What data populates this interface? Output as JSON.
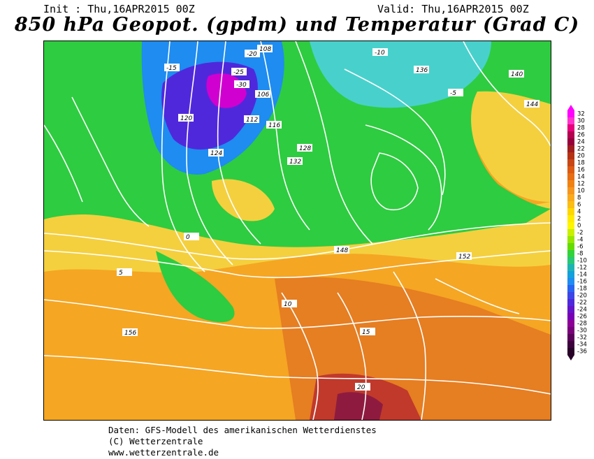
{
  "header": {
    "init": "Init : Thu,16APR2015 00Z",
    "valid": "Valid: Thu,16APR2015 00Z",
    "title": "850 hPa Geopot. (gpdm) und Temperatur (Grad C)"
  },
  "footer": {
    "line1": "Daten: GFS-Modell des amerikanischen Wetterdienstes",
    "line2": "(C) Wetterzentrale",
    "line3": "www.wetterzentrale.de"
  },
  "legend": {
    "labels": [
      "32",
      "30",
      "28",
      "26",
      "24",
      "22",
      "20",
      "18",
      "16",
      "14",
      "12",
      "10",
      "8",
      "6",
      "4",
      "2",
      "0",
      "-2",
      "-4",
      "-6",
      "-8",
      "-10",
      "-12",
      "-14",
      "-16",
      "-18",
      "-20",
      "-22",
      "-24",
      "-26",
      "-28",
      "-30",
      "-32",
      "-34",
      "-36"
    ],
    "colors": [
      "#ff00ff",
      "#ff33cc",
      "#e6007e",
      "#b40050",
      "#96003c",
      "#a01e1e",
      "#b43214",
      "#c84614",
      "#dc5a14",
      "#e66e14",
      "#f08214",
      "#f5961e",
      "#faaa1e",
      "#fabe14",
      "#ffd700",
      "#ffeb00",
      "#fff500",
      "#c8f000",
      "#96e600",
      "#64dc00",
      "#32d23c",
      "#28c878",
      "#1eb4b4",
      "#14a0dc",
      "#1e8cf0",
      "#2864f0",
      "#3c46e6",
      "#5028dc",
      "#6414c8",
      "#7800b4",
      "#8c0096",
      "#780078",
      "#5a005a",
      "#3c003c",
      "#280028"
    ],
    "arrow_top_color": "#ff00ff",
    "arrow_bottom_color": "#280028"
  },
  "map": {
    "background_color": "#f5a623",
    "geopotential_labels": [
      "108",
      "106",
      "116",
      "112",
      "120",
      "124",
      "128",
      "132",
      "136",
      "140",
      "144",
      "148",
      "152",
      "156"
    ],
    "temperature_labels": [
      "-30",
      "-25",
      "-20",
      "-15",
      "-10",
      "-5",
      "0",
      "5",
      "10",
      "15",
      "20"
    ]
  }
}
